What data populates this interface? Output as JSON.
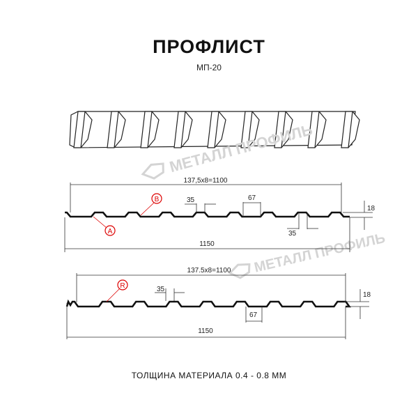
{
  "header": {
    "title": "ПРОФЛИСТ",
    "subtitle": "МП-20"
  },
  "watermark": "МЕТАЛЛ ПРОФИЛЬ",
  "profile_top": {
    "pitch_dim": "137,5x8=1100",
    "total_dim": "1150",
    "crest_dim": "35",
    "valley_dim": "67",
    "bottom_dim": "35",
    "height_dim": "18",
    "markers": [
      "A",
      "B"
    ]
  },
  "profile_bottom": {
    "pitch_dim": "137.5x8=1100",
    "total_dim": "1150",
    "crest_dim": "35",
    "valley_dim": "67",
    "height_dim": "18",
    "markers": [
      "R"
    ]
  },
  "footer": "ТОЛЩИНА МАТЕРИАЛА 0.4 - 0.8 ММ",
  "colors": {
    "profile": "#111111",
    "marker": "#dd0000",
    "watermark": "#d4d4d4"
  }
}
